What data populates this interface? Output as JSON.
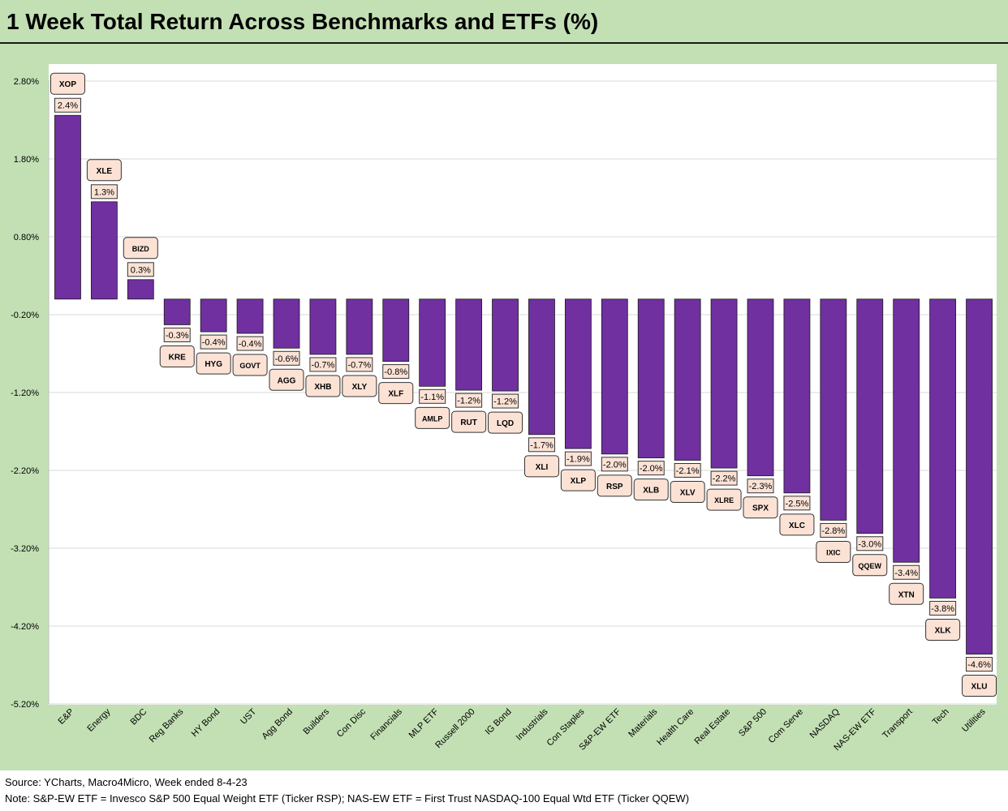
{
  "title": "1 Week Total Return Across Benchmarks and ETFs (%)",
  "footer": {
    "source": "Source: YCharts, Macro4Micro, Week ended 8-4-23",
    "note": "Note: S&P-EW ETF = Invesco S&P 500 Equal Weight ETF (Ticker RSP); NAS-EW ETF = First Trust NASDAQ-100 Equal Wtd ETF (Ticker QQEW)"
  },
  "colors": {
    "bar": "#7030a0",
    "label_fill": "#fbe2d5",
    "background": "#c3e0b4"
  },
  "chart_data": {
    "type": "bar",
    "title": "1 Week Total Return Across Benchmarks and ETFs (%)",
    "xlabel": "",
    "ylabel": "",
    "ylim": [
      -5.2,
      2.8
    ],
    "yticks": [
      "2.80%",
      "1.80%",
      "0.80%",
      "-0.20%",
      "-1.20%",
      "-2.20%",
      "-3.20%",
      "-4.20%",
      "-5.20%"
    ],
    "grid": true,
    "categories": [
      "E&P",
      "Energy",
      "BDC",
      "Reg Banks",
      "HY Bond",
      "UST",
      "Agg Bond",
      "Builders",
      "Con Disc",
      "Financials",
      "MLP ETF",
      "Russell 2000",
      "IG Bond",
      "Industrials",
      "Con Staples",
      "S&P-EW ETF",
      "Materials",
      "Health Care",
      "Real Estate",
      "S&P 500",
      "Com Serve",
      "NASDAQ",
      "NAS-EW ETF",
      "Transport",
      "Tech",
      "Utilities"
    ],
    "tickers": [
      "XOP",
      "XLE",
      "BIZD",
      "KRE",
      "HYG",
      "GOVT",
      "AGG",
      "XHB",
      "XLY",
      "XLF",
      "AMLP",
      "RUT",
      "LQD",
      "XLI",
      "XLP",
      "RSP",
      "XLB",
      "XLV",
      "XLRE",
      "SPX",
      "XLC",
      "IXIC",
      "QQEW",
      "XTN",
      "XLK",
      "XLU"
    ],
    "values": [
      2.36,
      1.25,
      0.25,
      -0.33,
      -0.42,
      -0.44,
      -0.63,
      -0.71,
      -0.71,
      -0.8,
      -1.12,
      -1.17,
      -1.18,
      -1.74,
      -1.92,
      -1.99,
      -2.04,
      -2.07,
      -2.17,
      -2.27,
      -2.49,
      -2.84,
      -3.01,
      -3.38,
      -3.84,
      -4.56
    ],
    "value_labels": [
      "2.4%",
      "1.3%",
      "0.3%",
      "-0.3%",
      "-0.4%",
      "-0.4%",
      "-0.6%",
      "-0.7%",
      "-0.7%",
      "-0.8%",
      "-1.1%",
      "-1.2%",
      "-1.2%",
      "-1.7%",
      "-1.9%",
      "-2.0%",
      "-2.0%",
      "-2.1%",
      "-2.2%",
      "-2.3%",
      "-2.5%",
      "-2.8%",
      "-3.0%",
      "-3.4%",
      "-3.8%",
      "-4.6%"
    ]
  }
}
